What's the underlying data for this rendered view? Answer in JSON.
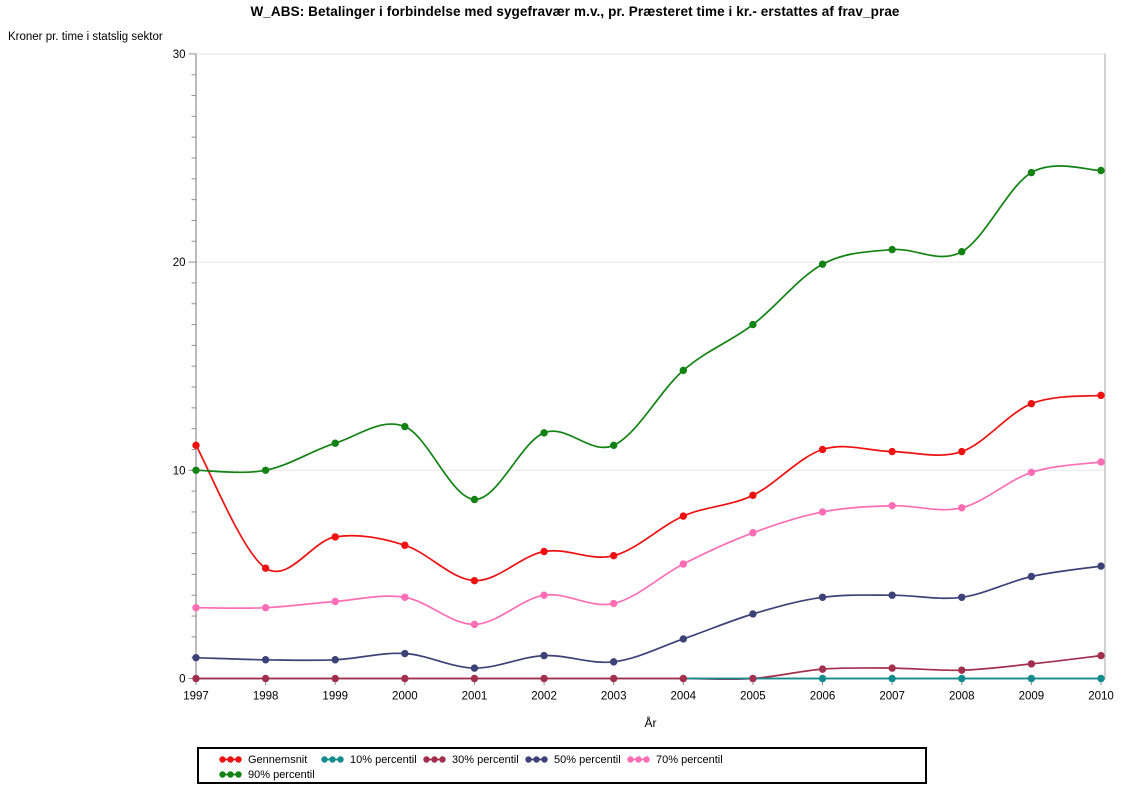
{
  "page": {
    "background": "#ffffff"
  },
  "chart_data": {
    "type": "line",
    "title": "W_ABS: Betalinger i forbindelse med sygefravær m.v., pr. Præsteret time i kr.- erstattes af frav_prae",
    "y_axis_label": "Kroner pr. time i statslig sektor",
    "xlabel": "År",
    "ylim": [
      0,
      30
    ],
    "y_major_ticks": [
      0,
      10,
      20,
      30
    ],
    "y_minor_tick_step": 1,
    "grid": "horizontal gridlines at major ticks",
    "grid_color": "#e7e7e7",
    "axis_color": "#8f8f8f",
    "legend_position": "bottom",
    "legend_rows": [
      5,
      1
    ],
    "categories": [
      "1997",
      "1998",
      "1999",
      "2000",
      "2001",
      "2002",
      "2003",
      "2004",
      "2005",
      "2006",
      "2007",
      "2008",
      "2009",
      "2010"
    ],
    "series": [
      {
        "name": "Gennemsnit",
        "color": "#ee1111",
        "values": [
          11.2,
          5.3,
          6.8,
          6.4,
          4.7,
          6.1,
          5.9,
          7.8,
          8.8,
          11.0,
          10.9,
          10.9,
          13.2,
          13.6
        ]
      },
      {
        "name": "10% percentil",
        "color": "#128c8c",
        "values": [
          null,
          null,
          null,
          null,
          null,
          null,
          null,
          0,
          0,
          0,
          0,
          0,
          0,
          0
        ],
        "first_marker_year": "2006"
      },
      {
        "name": "30% percentil",
        "color": "#a22f4e",
        "values": [
          0,
          0,
          0,
          0,
          0,
          0,
          0,
          0,
          0,
          0.45,
          0.5,
          0.4,
          0.7,
          1.1
        ]
      },
      {
        "name": "50% percentil",
        "color": "#3c4278",
        "values": [
          1.0,
          0.9,
          0.9,
          1.2,
          0.5,
          1.1,
          0.8,
          1.9,
          3.1,
          3.9,
          4.0,
          3.9,
          4.9,
          5.4
        ]
      },
      {
        "name": "70% percentil",
        "color": "#ff6eb4",
        "values": [
          3.4,
          3.4,
          3.7,
          3.9,
          2.6,
          4.0,
          3.6,
          5.5,
          7.0,
          8.0,
          8.3,
          8.2,
          9.9,
          10.4
        ]
      },
      {
        "name": "90% percentil",
        "color": "#128212",
        "values": [
          10.0,
          10.0,
          11.3,
          12.1,
          8.6,
          11.8,
          11.2,
          14.8,
          17.0,
          19.9,
          20.6,
          20.5,
          24.3,
          24.4
        ]
      }
    ]
  }
}
